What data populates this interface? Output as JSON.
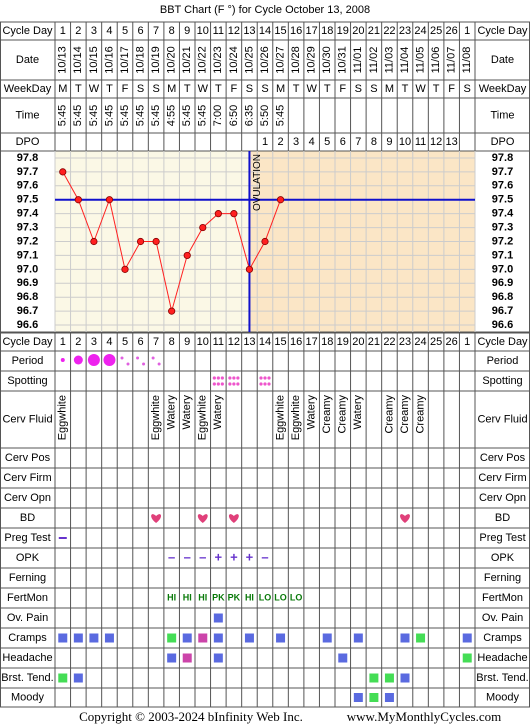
{
  "title": "BBT Chart (F °) for Cycle October 13, 2008",
  "labels": {
    "cycle_day": "Cycle Day",
    "date": "Date",
    "weekday": "WeekDay",
    "time": "Time",
    "dpo": "DPO",
    "period": "Period",
    "spotting": "Spotting",
    "cerv_fluid": "Cerv Fluid",
    "cerv_pos": "Cerv Pos",
    "cerv_firm": "Cerv Firm",
    "cerv_opn": "Cerv Opn",
    "bd": "BD",
    "preg_test": "Preg Test",
    "opk": "OPK",
    "ferning": "Ferning",
    "fertmon": "FertMon",
    "ov_pain": "Ov. Pain",
    "cramps": "Cramps",
    "headache": "Headache",
    "brst_tend": "Brst. Tend.",
    "moody": "Moody"
  },
  "table": {
    "cycle_day": [
      1,
      2,
      3,
      4,
      5,
      6,
      7,
      8,
      9,
      10,
      11,
      12,
      13,
      14,
      15,
      16,
      17,
      18,
      19,
      20,
      21,
      22,
      23,
      24,
      25,
      26,
      1
    ],
    "date": [
      "10/13",
      "10/14",
      "10/15",
      "10/16",
      "10/17",
      "10/18",
      "10/19",
      "10/20",
      "10/21",
      "10/22",
      "10/23",
      "10/24",
      "10/25",
      "10/26",
      "10/27",
      "10/28",
      "10/29",
      "10/30",
      "10/31",
      "11/01",
      "11/02",
      "11/03",
      "11/04",
      "11/05",
      "11/06",
      "11/07",
      "11/08"
    ],
    "weekday": [
      "M",
      "T",
      "W",
      "T",
      "F",
      "S",
      "S",
      "M",
      "T",
      "W",
      "T",
      "F",
      "S",
      "S",
      "M",
      "T",
      "W",
      "T",
      "F",
      "S",
      "S",
      "M",
      "T",
      "W",
      "T",
      "F",
      "S"
    ],
    "time": [
      "5:45",
      "5:45",
      "5:45",
      "5:45",
      "5:45",
      "5:45",
      "5:45",
      "4:55",
      "5:45",
      "5:45",
      "7:00",
      "6:50",
      "6:35",
      "5:50",
      "5:45",
      null,
      null,
      null,
      null,
      null,
      null,
      null,
      null,
      null,
      null,
      null,
      null
    ],
    "dpo": [
      null,
      null,
      null,
      null,
      null,
      null,
      null,
      null,
      null,
      null,
      null,
      null,
      null,
      1,
      2,
      3,
      4,
      5,
      6,
      7,
      8,
      9,
      10,
      11,
      12,
      13,
      null
    ],
    "cerv_fluid": [
      "Eggwhite",
      null,
      null,
      null,
      null,
      null,
      "Eggwhite",
      "Watery",
      "Watery",
      "Eggwhite",
      "Watery",
      null,
      null,
      null,
      "Eggwhite",
      "Eggwhite",
      "Watery",
      "Creamy",
      "Creamy",
      "Watery",
      null,
      "Creamy",
      "Creamy",
      "Creamy",
      null,
      null,
      null
    ],
    "opk": [
      null,
      null,
      null,
      null,
      null,
      null,
      null,
      "–",
      "–",
      "–",
      "+",
      "+",
      "+",
      "–",
      null,
      null,
      null,
      null,
      null,
      null,
      null,
      null,
      null,
      null,
      null,
      null,
      null
    ],
    "fertmon": [
      null,
      null,
      null,
      null,
      null,
      null,
      null,
      "HI",
      "HI",
      "HI",
      "PK",
      "PK",
      "HI",
      "LO",
      "LO",
      "LO",
      null,
      null,
      null,
      null,
      null,
      null,
      null,
      null,
      null,
      null,
      null
    ]
  },
  "chart_data": {
    "type": "line",
    "color": "#ff2020",
    "values": [
      97.7,
      97.5,
      97.2,
      97.5,
      97.0,
      97.2,
      97.2,
      96.7,
      97.1,
      97.3,
      97.4,
      97.4,
      97.0,
      97.2,
      97.5,
      null,
      null,
      null,
      null,
      null,
      null,
      null,
      null,
      null,
      null,
      null,
      null
    ],
    "ylim": [
      96.55,
      97.85
    ],
    "yticks": [
      97.8,
      97.7,
      97.6,
      97.5,
      97.4,
      97.3,
      97.2,
      97.1,
      {
        "value": 97,
        "label": "97.0"
      },
      96.9,
      96.8,
      96.7,
      96.6
    ],
    "grid": true,
    "coverline": 97.5,
    "ovulation_label": "OVULATION"
  },
  "footer": {
    "copyright": "Copyright © 2003-2024 bInfinity Web Inc.",
    "site": "www.MyMonthlyCycles.com"
  }
}
